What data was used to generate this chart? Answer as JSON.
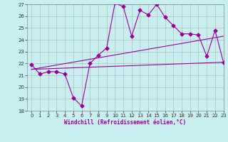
{
  "line1_x": [
    0,
    1,
    2,
    3,
    4,
    5,
    6,
    7,
    8,
    9,
    10,
    11,
    12,
    13,
    14,
    15,
    16,
    17,
    18,
    19,
    20,
    21,
    22,
    23
  ],
  "line1_y": [
    21.9,
    21.1,
    21.3,
    21.3,
    21.1,
    19.1,
    18.4,
    22.0,
    22.7,
    23.3,
    27.1,
    26.8,
    24.3,
    26.5,
    26.1,
    27.0,
    25.9,
    25.2,
    24.5,
    24.5,
    24.4,
    22.6,
    24.8,
    22.1
  ],
  "line2_x": [
    0,
    23
  ],
  "line2_y": [
    21.5,
    22.1
  ],
  "line3_x": [
    0,
    23
  ],
  "line3_y": [
    21.5,
    24.3
  ],
  "bg_color": "#c8eef0",
  "grid_color": "#b0b0b0",
  "ylim": [
    18,
    27
  ],
  "xlim": [
    -0.5,
    23
  ],
  "yticks": [
    18,
    19,
    20,
    21,
    22,
    23,
    24,
    25,
    26,
    27
  ],
  "xticks": [
    0,
    1,
    2,
    3,
    4,
    5,
    6,
    7,
    8,
    9,
    10,
    11,
    12,
    13,
    14,
    15,
    16,
    17,
    18,
    19,
    20,
    21,
    22,
    23
  ],
  "xlabel": "Windchill (Refroidissement éolien,°C)",
  "line_color": "#990099",
  "marker": "D",
  "markersize": 2.5,
  "linewidth": 0.8
}
